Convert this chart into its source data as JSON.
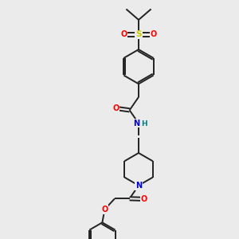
{
  "bg_color": "#ebebeb",
  "bond_color": "#222222",
  "bond_width": 1.4,
  "atom_colors": {
    "O": "#ff0000",
    "N": "#0000cc",
    "S": "#cccc00",
    "H": "#008080",
    "C": "#222222"
  },
  "figsize": [
    3.0,
    3.0
  ],
  "dpi": 100,
  "xlim": [
    0,
    10
  ],
  "ylim": [
    0,
    10
  ]
}
